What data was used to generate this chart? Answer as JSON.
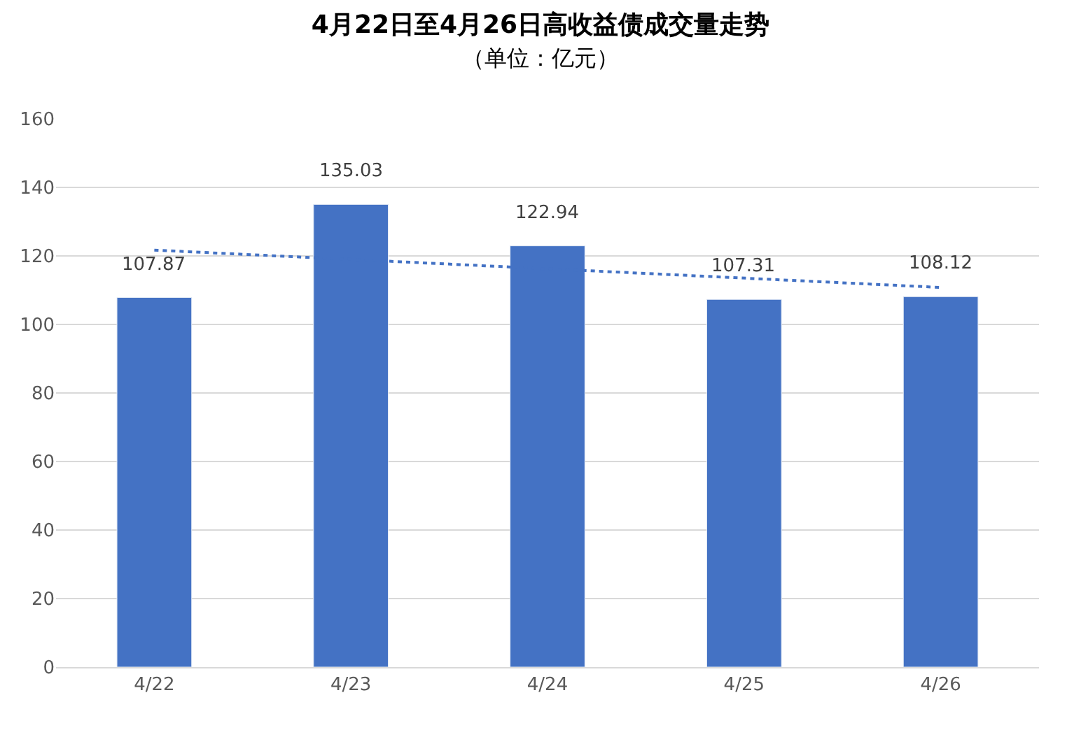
{
  "chart_data": {
    "type": "bar",
    "title": "4月22日至4月26日高收益债成交量走势",
    "subtitle": "（单位：亿元）",
    "categories": [
      "4/22",
      "4/23",
      "4/24",
      "4/25",
      "4/26"
    ],
    "series": [
      {
        "color": "#4472c4",
        "values": [
          107.87,
          135.03,
          122.94,
          107.31,
          108.12
        ],
        "value_labels": [
          "107.87",
          "135.03",
          "122.94",
          "107.31",
          "108.12"
        ]
      },
      {
        "type": "line",
        "color": "#4472c4",
        "x": [
          "4/22",
          "4/26"
        ],
        "values": [
          121.7,
          110.8
        ],
        "line_style": "dotted",
        "marker": "none"
      }
    ],
    "ylim": [
      0,
      160
    ],
    "yticks": [
      0,
      20,
      40,
      60,
      80,
      100,
      120,
      140,
      160
    ],
    "grid": "y"
  }
}
